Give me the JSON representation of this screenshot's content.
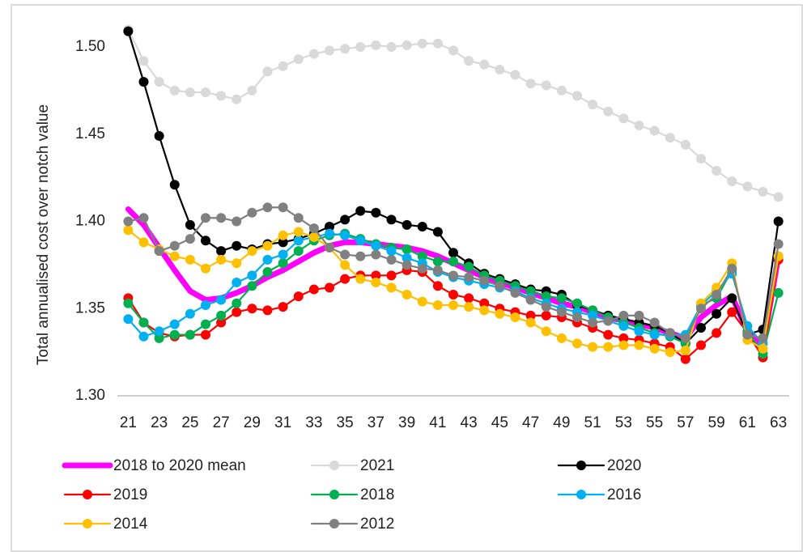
{
  "chart_data": {
    "type": "line",
    "y_label": "Total annualised cost over notch value",
    "x": [
      21,
      22,
      23,
      24,
      25,
      26,
      27,
      28,
      29,
      30,
      31,
      32,
      33,
      34,
      35,
      36,
      37,
      38,
      39,
      40,
      41,
      42,
      43,
      44,
      45,
      46,
      47,
      48,
      49,
      50,
      51,
      52,
      53,
      54,
      55,
      56,
      57,
      58,
      59,
      60,
      61,
      62,
      63
    ],
    "xlim": [
      20.3,
      63.7
    ],
    "xticks": [
      21,
      23,
      25,
      27,
      29,
      31,
      33,
      35,
      37,
      39,
      41,
      43,
      45,
      47,
      49,
      51,
      53,
      55,
      57,
      59,
      61,
      63
    ],
    "ylim": [
      1.3,
      1.51
    ],
    "yticks": [
      {
        "value": 1.3,
        "label": "1.30"
      },
      1.35,
      {
        "value": 1.4,
        "label": "1.40"
      },
      1.45,
      {
        "value": 1.5,
        "label": "1.50"
      }
    ],
    "grid": false,
    "series": [
      {
        "name": "2018 to 2020 mean",
        "color": "#ff00ff",
        "markers": false,
        "values": [
          1.407,
          1.398,
          1.385,
          1.372,
          1.36,
          1.355,
          1.356,
          1.359,
          1.363,
          1.368,
          1.372,
          1.377,
          1.382,
          1.386,
          1.388,
          1.388,
          1.387,
          1.386,
          1.385,
          1.383,
          1.38,
          1.376,
          1.372,
          1.368,
          1.365,
          1.362,
          1.359,
          1.356,
          1.353,
          1.351,
          1.348,
          1.345,
          1.343,
          1.341,
          1.339,
          1.336,
          1.333,
          1.345,
          1.352,
          1.357,
          1.337,
          1.328,
          1.38
        ]
      },
      {
        "name": "2021",
        "color": "#d9d9d9",
        "markers": true,
        "values": [
          1.51,
          1.492,
          1.48,
          1.475,
          1.474,
          1.474,
          1.472,
          1.47,
          1.475,
          1.486,
          1.489,
          1.493,
          1.496,
          1.498,
          1.499,
          1.5,
          1.501,
          1.5,
          1.501,
          1.502,
          1.502,
          1.498,
          1.492,
          1.49,
          1.487,
          1.484,
          1.479,
          1.478,
          1.475,
          1.472,
          1.467,
          1.463,
          1.459,
          1.455,
          1.452,
          1.448,
          1.444,
          1.436,
          1.429,
          1.423,
          1.42,
          1.417,
          1.414
        ]
      },
      {
        "name": "2020",
        "color": "#000000",
        "markers": true,
        "values": [
          1.509,
          1.48,
          1.449,
          1.421,
          1.398,
          1.389,
          1.383,
          1.386,
          1.384,
          1.387,
          1.388,
          1.39,
          1.393,
          1.397,
          1.401,
          1.406,
          1.405,
          1.401,
          1.398,
          1.397,
          1.394,
          1.382,
          1.376,
          1.37,
          1.367,
          1.364,
          1.361,
          1.36,
          1.358,
          1.352,
          1.349,
          1.346,
          1.344,
          1.342,
          1.34,
          1.336,
          1.33,
          1.339,
          1.347,
          1.356,
          1.335,
          1.338,
          1.4
        ]
      },
      {
        "name": "2019",
        "color": "#ff0000",
        "markers": true,
        "values": [
          1.356,
          1.342,
          1.336,
          1.334,
          1.335,
          1.335,
          1.342,
          1.348,
          1.35,
          1.349,
          1.351,
          1.357,
          1.361,
          1.362,
          1.367,
          1.369,
          1.369,
          1.369,
          1.372,
          1.371,
          1.363,
          1.358,
          1.356,
          1.353,
          1.35,
          1.348,
          1.346,
          1.346,
          1.345,
          1.342,
          1.339,
          1.335,
          1.333,
          1.332,
          1.33,
          1.328,
          1.321,
          1.329,
          1.336,
          1.348,
          1.336,
          1.322,
          1.378
        ]
      },
      {
        "name": "2018",
        "color": "#00b050",
        "markers": true,
        "values": [
          1.353,
          1.342,
          1.333,
          1.335,
          1.335,
          1.341,
          1.346,
          1.353,
          1.363,
          1.371,
          1.376,
          1.383,
          1.389,
          1.392,
          1.393,
          1.39,
          1.387,
          1.385,
          1.384,
          1.38,
          1.377,
          1.377,
          1.374,
          1.369,
          1.366,
          1.363,
          1.36,
          1.357,
          1.356,
          1.353,
          1.349,
          1.345,
          1.342,
          1.339,
          1.336,
          1.334,
          1.33,
          1.352,
          1.356,
          1.372,
          1.337,
          1.324,
          1.359
        ]
      },
      {
        "name": "2016",
        "color": "#00b0f0",
        "markers": true,
        "values": [
          1.344,
          1.334,
          1.337,
          1.341,
          1.347,
          1.352,
          1.355,
          1.365,
          1.369,
          1.378,
          1.381,
          1.389,
          1.391,
          1.393,
          1.392,
          1.389,
          1.386,
          1.383,
          1.379,
          1.376,
          1.371,
          1.368,
          1.366,
          1.364,
          1.362,
          1.36,
          1.356,
          1.353,
          1.35,
          1.348,
          1.346,
          1.343,
          1.34,
          1.337,
          1.335,
          1.335,
          1.335,
          1.352,
          1.36,
          1.37,
          1.34,
          1.33,
          1.38
        ]
      },
      {
        "name": "2014",
        "color": "#ffc000",
        "markers": true,
        "values": [
          1.395,
          1.388,
          1.384,
          1.38,
          1.378,
          1.373,
          1.378,
          1.376,
          1.383,
          1.386,
          1.392,
          1.394,
          1.391,
          1.385,
          1.375,
          1.367,
          1.365,
          1.362,
          1.358,
          1.354,
          1.352,
          1.352,
          1.351,
          1.349,
          1.347,
          1.345,
          1.342,
          1.337,
          1.333,
          1.33,
          1.328,
          1.328,
          1.329,
          1.329,
          1.327,
          1.325,
          1.326,
          1.353,
          1.362,
          1.376,
          1.332,
          1.327,
          1.38
        ]
      },
      {
        "name": "2012",
        "color": "#808080",
        "markers": true,
        "values": [
          1.4,
          1.402,
          1.383,
          1.386,
          1.39,
          1.402,
          1.402,
          1.4,
          1.405,
          1.408,
          1.408,
          1.402,
          1.396,
          1.385,
          1.381,
          1.38,
          1.381,
          1.378,
          1.375,
          1.373,
          1.372,
          1.369,
          1.368,
          1.366,
          1.363,
          1.359,
          1.355,
          1.351,
          1.348,
          1.345,
          1.342,
          1.343,
          1.346,
          1.346,
          1.342,
          1.336,
          1.333,
          1.35,
          1.358,
          1.373,
          1.335,
          1.333,
          1.387
        ]
      }
    ]
  }
}
